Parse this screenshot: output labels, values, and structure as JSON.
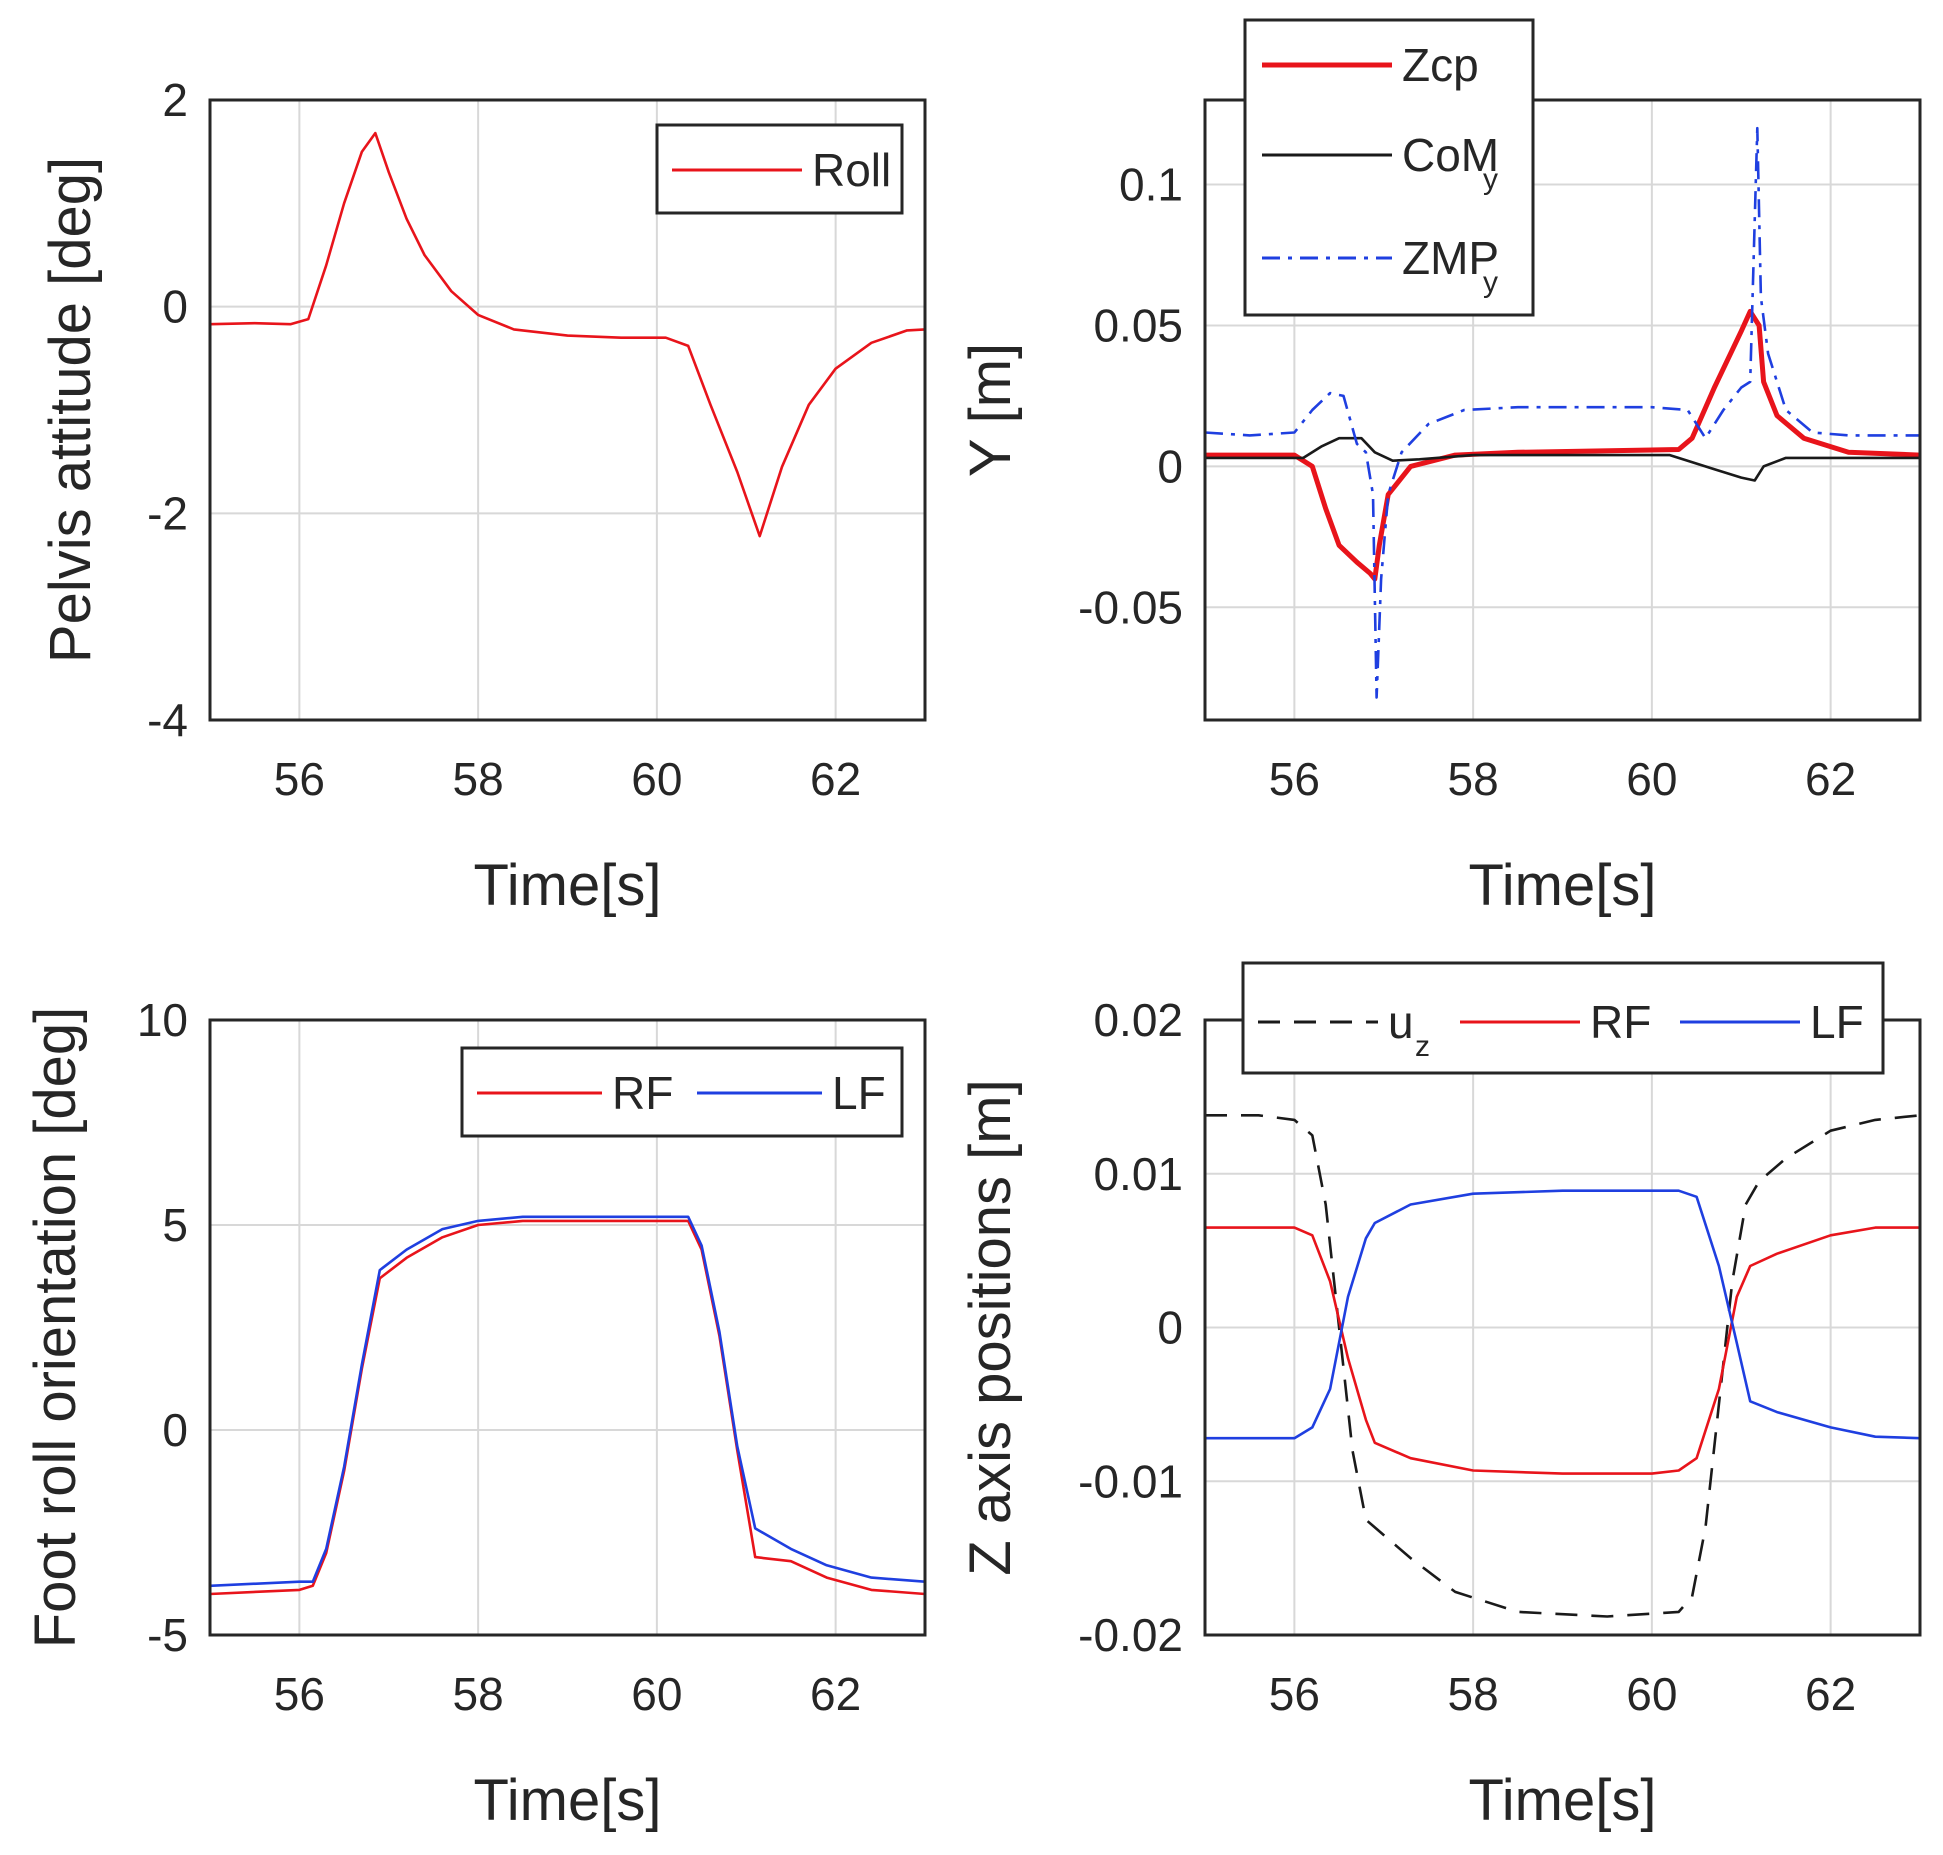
{
  "chart_data": [
    {
      "id": "pelvis",
      "type": "line",
      "xlabel": "Time[s]",
      "ylabel": "Pelvis attitude [deg]",
      "xlim": [
        55,
        63
      ],
      "ylim": [
        -4,
        2
      ],
      "xticks": [
        56,
        58,
        60,
        62
      ],
      "yticks": [
        -4,
        -2,
        0,
        2
      ],
      "legend_position": "top-right",
      "series": [
        {
          "name": "Roll",
          "color": "#e8141b",
          "style": "solid",
          "x": [
            55,
            55.5,
            55.9,
            56.1,
            56.3,
            56.5,
            56.7,
            56.85,
            57.0,
            57.2,
            57.4,
            57.7,
            58.0,
            58.4,
            59.0,
            59.6,
            60.1,
            60.35,
            60.6,
            60.9,
            61.15,
            61.4,
            61.7,
            62.0,
            62.4,
            62.8,
            63
          ],
          "values": [
            -0.17,
            -0.16,
            -0.17,
            -0.12,
            0.4,
            1.0,
            1.5,
            1.68,
            1.3,
            0.85,
            0.5,
            0.15,
            -0.08,
            -0.22,
            -0.28,
            -0.3,
            -0.3,
            -0.38,
            -0.95,
            -1.6,
            -2.22,
            -1.55,
            -0.95,
            -0.6,
            -0.35,
            -0.23,
            -0.22
          ]
        }
      ]
    },
    {
      "id": "ycoord",
      "type": "line",
      "xlabel": "Time[s]",
      "ylabel": "Y [m]",
      "xlim": [
        55,
        63
      ],
      "ylim": [
        -0.09,
        0.13
      ],
      "xticks": [
        56,
        58,
        60,
        62
      ],
      "yticks": [
        -0.05,
        0,
        0.05,
        0.1
      ],
      "legend_position": "top-left (outside top)",
      "series": [
        {
          "name": "Zcp",
          "sub": "",
          "color": "#e8141b",
          "style": "solid-thick",
          "x": [
            55,
            56.0,
            56.2,
            56.35,
            56.5,
            56.7,
            56.85,
            56.9,
            56.95,
            57.05,
            57.3,
            57.8,
            58.5,
            60.3,
            60.45,
            60.7,
            61.0,
            61.1,
            61.2,
            61.25,
            61.4,
            61.7,
            62.2,
            63
          ],
          "values": [
            0.004,
            0.004,
            0.0,
            -0.015,
            -0.028,
            -0.034,
            -0.038,
            -0.04,
            -0.028,
            -0.01,
            0.0,
            0.004,
            0.005,
            0.006,
            0.01,
            0.028,
            0.048,
            0.055,
            0.05,
            0.03,
            0.018,
            0.01,
            0.005,
            0.004
          ]
        },
        {
          "name": "CoM",
          "sub": "y",
          "color": "#1a1a1a",
          "style": "solid",
          "x": [
            55,
            56.1,
            56.3,
            56.5,
            56.75,
            56.9,
            57.1,
            57.4,
            58.0,
            60.2,
            60.4,
            60.7,
            61.0,
            61.15,
            61.25,
            61.5,
            62.0,
            63
          ],
          "values": [
            0.003,
            0.003,
            0.007,
            0.01,
            0.01,
            0.005,
            0.002,
            0.0025,
            0.004,
            0.004,
            0.002,
            -0.001,
            -0.004,
            -0.005,
            0.0,
            0.003,
            0.003,
            0.003
          ],
          "note": "CoM_y"
        },
        {
          "name": "ZMP",
          "sub": "y",
          "color": "#1f3fe0",
          "style": "dashdot",
          "x": [
            55,
            55.5,
            56.0,
            56.2,
            56.4,
            56.55,
            56.7,
            56.8,
            56.88,
            56.92,
            56.97,
            57.05,
            57.2,
            57.5,
            57.9,
            58.5,
            60.0,
            60.4,
            60.6,
            60.8,
            61.0,
            61.1,
            61.18,
            61.22,
            61.3,
            61.5,
            61.8,
            62.2,
            63
          ],
          "values": [
            0.012,
            0.011,
            0.012,
            0.02,
            0.026,
            0.025,
            0.008,
            0.005,
            -0.01,
            -0.082,
            -0.04,
            -0.01,
            0.005,
            0.015,
            0.02,
            0.021,
            0.021,
            0.02,
            0.01,
            0.02,
            0.028,
            0.03,
            0.12,
            0.06,
            0.04,
            0.02,
            0.012,
            0.011,
            0.011
          ],
          "note": "ZMP_y"
        }
      ]
    },
    {
      "id": "footroll",
      "type": "line",
      "xlabel": "Time[s]",
      "ylabel": "Foot roll orientation [deg]",
      "xlim": [
        55,
        63
      ],
      "ylim": [
        -5,
        10
      ],
      "xticks": [
        56,
        58,
        60,
        62
      ],
      "yticks": [
        -5,
        0,
        5,
        10
      ],
      "legend_position": "top-right",
      "series": [
        {
          "name": "RF",
          "color": "#e8141b",
          "style": "solid",
          "x": [
            55,
            56.0,
            56.15,
            56.3,
            56.5,
            56.7,
            56.9,
            57.2,
            57.6,
            58.0,
            58.5,
            60.2,
            60.35,
            60.5,
            60.7,
            60.9,
            61.1,
            61.5,
            61.9,
            62.4,
            63
          ],
          "values": [
            -4.0,
            -3.9,
            -3.8,
            -3.0,
            -1.0,
            1.5,
            3.7,
            4.2,
            4.7,
            5.0,
            5.1,
            5.1,
            5.1,
            4.4,
            2.3,
            -0.5,
            -3.1,
            -3.2,
            -3.6,
            -3.9,
            -4.0
          ]
        },
        {
          "name": "LF",
          "color": "#1f3fe0",
          "style": "solid",
          "x": [
            55,
            56.0,
            56.15,
            56.3,
            56.5,
            56.7,
            56.9,
            57.2,
            57.6,
            58.0,
            58.5,
            60.2,
            60.35,
            60.5,
            60.7,
            60.9,
            61.1,
            61.5,
            61.9,
            62.4,
            63
          ],
          "values": [
            -3.8,
            -3.7,
            -3.7,
            -2.9,
            -0.9,
            1.6,
            3.9,
            4.4,
            4.9,
            5.1,
            5.2,
            5.2,
            5.2,
            4.5,
            2.4,
            -0.4,
            -2.4,
            -2.9,
            -3.3,
            -3.6,
            -3.7
          ]
        }
      ]
    },
    {
      "id": "zaxis",
      "type": "line",
      "xlabel": "Time[s]",
      "ylabel": "Z axis positions [m]",
      "xlim": [
        55,
        63
      ],
      "ylim": [
        -0.02,
        0.02
      ],
      "xticks": [
        56,
        58,
        60,
        62
      ],
      "yticks": [
        -0.02,
        -0.01,
        0,
        0.01,
        0.02
      ],
      "legend_position": "top (horizontal)",
      "series": [
        {
          "name": "u",
          "sub": "z",
          "color": "#1a1a1a",
          "style": "dashed",
          "x": [
            55,
            55.6,
            56.0,
            56.2,
            56.35,
            56.5,
            56.65,
            56.8,
            57.0,
            57.3,
            57.8,
            58.5,
            59.5,
            60.3,
            60.45,
            60.6,
            60.75,
            60.9,
            61.05,
            61.2,
            61.5,
            62.0,
            62.5,
            63
          ],
          "values": [
            0.0138,
            0.0138,
            0.0135,
            0.0125,
            0.008,
            0.0,
            -0.008,
            -0.0125,
            -0.0135,
            -0.015,
            -0.0172,
            -0.0185,
            -0.0188,
            -0.0185,
            -0.0175,
            -0.013,
            -0.005,
            0.003,
            0.008,
            0.0095,
            0.011,
            0.0128,
            0.0135,
            0.0138
          ],
          "note": "u_z"
        },
        {
          "name": "RF",
          "sub": "",
          "color": "#e8141b",
          "style": "solid",
          "x": [
            55,
            56.0,
            56.2,
            56.4,
            56.6,
            56.8,
            56.9,
            57.3,
            58.0,
            59.0,
            60.0,
            60.3,
            60.5,
            60.75,
            60.95,
            61.1,
            61.4,
            62.0,
            62.5,
            63
          ],
          "values": [
            0.0065,
            0.0065,
            0.006,
            0.003,
            -0.002,
            -0.006,
            -0.0075,
            -0.0085,
            -0.0093,
            -0.0095,
            -0.0095,
            -0.0093,
            -0.0085,
            -0.004,
            0.002,
            0.004,
            0.0048,
            0.006,
            0.0065,
            0.0065
          ]
        },
        {
          "name": "LF",
          "sub": "",
          "color": "#1f3fe0",
          "style": "solid",
          "x": [
            55,
            56.0,
            56.2,
            56.4,
            56.6,
            56.8,
            56.9,
            57.3,
            58.0,
            59.0,
            60.0,
            60.3,
            60.5,
            60.75,
            60.95,
            61.1,
            61.4,
            62.0,
            62.5,
            63
          ],
          "values": [
            -0.0072,
            -0.0072,
            -0.0065,
            -0.004,
            0.002,
            0.0058,
            0.0068,
            0.008,
            0.0087,
            0.0089,
            0.0089,
            0.0089,
            0.0085,
            0.004,
            -0.001,
            -0.0048,
            -0.0055,
            -0.0065,
            -0.0071,
            -0.0072
          ]
        }
      ]
    }
  ]
}
